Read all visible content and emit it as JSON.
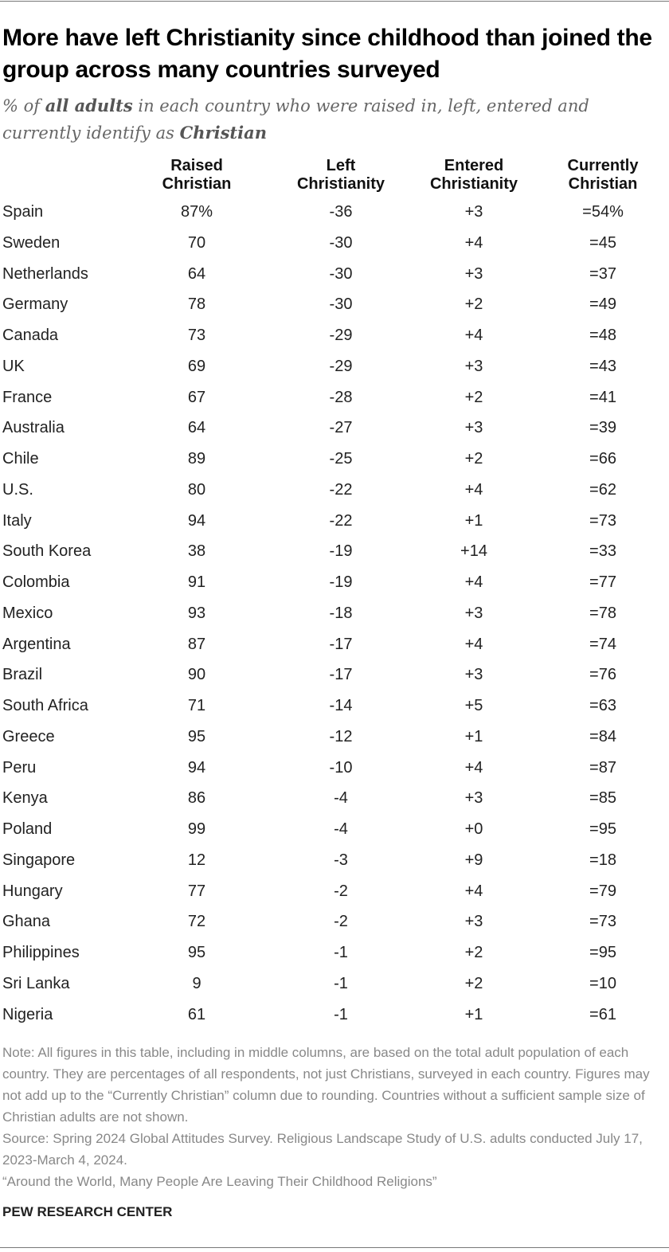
{
  "header": {
    "title": "More have left Christianity since childhood than joined the group across many countries surveyed",
    "subtitle": [
      "% of ",
      "all adults",
      " in each country who were raised in, left, entered and currently identify as ",
      "Christian"
    ]
  },
  "table": {
    "columns": [
      [
        "Raised",
        "Christian"
      ],
      [
        "Left",
        "Christianity"
      ],
      [
        "Entered",
        "Christianity"
      ],
      [
        "Currently",
        "Christian"
      ]
    ],
    "rows": [
      [
        "Spain",
        "87%",
        "-36",
        "+3",
        "=54%"
      ],
      [
        "Sweden",
        "70",
        "-30",
        "+4",
        "=45"
      ],
      [
        "Netherlands",
        "64",
        "-30",
        "+3",
        "=37"
      ],
      [
        "Germany",
        "78",
        "-30",
        "+2",
        "=49"
      ],
      [
        "Canada",
        "73",
        "-29",
        "+4",
        "=48"
      ],
      [
        "UK",
        "69",
        "-29",
        "+3",
        "=43"
      ],
      [
        "France",
        "67",
        "-28",
        "+2",
        "=41"
      ],
      [
        "Australia",
        "64",
        "-27",
        "+3",
        "=39"
      ],
      [
        "Chile",
        "89",
        "-25",
        "+2",
        "=66"
      ],
      [
        "U.S.",
        "80",
        "-22",
        "+4",
        "=62"
      ],
      [
        "Italy",
        "94",
        "-22",
        "+1",
        "=73"
      ],
      [
        "South Korea",
        "38",
        "-19",
        "+14",
        "=33"
      ],
      [
        "Colombia",
        "91",
        "-19",
        "+4",
        "=77"
      ],
      [
        "Mexico",
        "93",
        "-18",
        "+3",
        "=78"
      ],
      [
        "Argentina",
        "87",
        "-17",
        "+4",
        "=74"
      ],
      [
        "Brazil",
        "90",
        "-17",
        "+3",
        "=76"
      ],
      [
        "South Africa",
        "71",
        "-14",
        "+5",
        "=63"
      ],
      [
        "Greece",
        "95",
        "-12",
        "+1",
        "=84"
      ],
      [
        "Peru",
        "94",
        "-10",
        "+4",
        "=87"
      ],
      [
        "Kenya",
        "86",
        "-4",
        "+3",
        "=85"
      ],
      [
        "Poland",
        "99",
        "-4",
        "+0",
        "=95"
      ],
      [
        "Singapore",
        "12",
        "-3",
        "+9",
        "=18"
      ],
      [
        "Hungary",
        "77",
        "-2",
        "+4",
        "=79"
      ],
      [
        "Ghana",
        "72",
        "-2",
        "+3",
        "=73"
      ],
      [
        "Philippines",
        "95",
        "-1",
        "+2",
        "=95"
      ],
      [
        "Sri Lanka",
        "9",
        "-1",
        "+2",
        "=10"
      ],
      [
        "Nigeria",
        "61",
        "-1",
        "+1",
        "=61"
      ]
    ]
  },
  "footer": {
    "note": "Note: All figures in this table, including in middle columns, are based on the total adult population of each country. They are percentages of all respondents, not just Christians, surveyed in each country. Figures may not add up to the “Currently Christian” column due to rounding. Countries without a sufficient sample size of Christian adults are not shown.",
    "source": "Source: Spring 2024 Global Attitudes Survey. Religious Landscape Study of U.S. adults conducted July 17, 2023-March 4, 2024.",
    "report": "“Around the World, Many People Are Leaving Their Childhood Religions”",
    "org": "PEW RESEARCH CENTER"
  }
}
